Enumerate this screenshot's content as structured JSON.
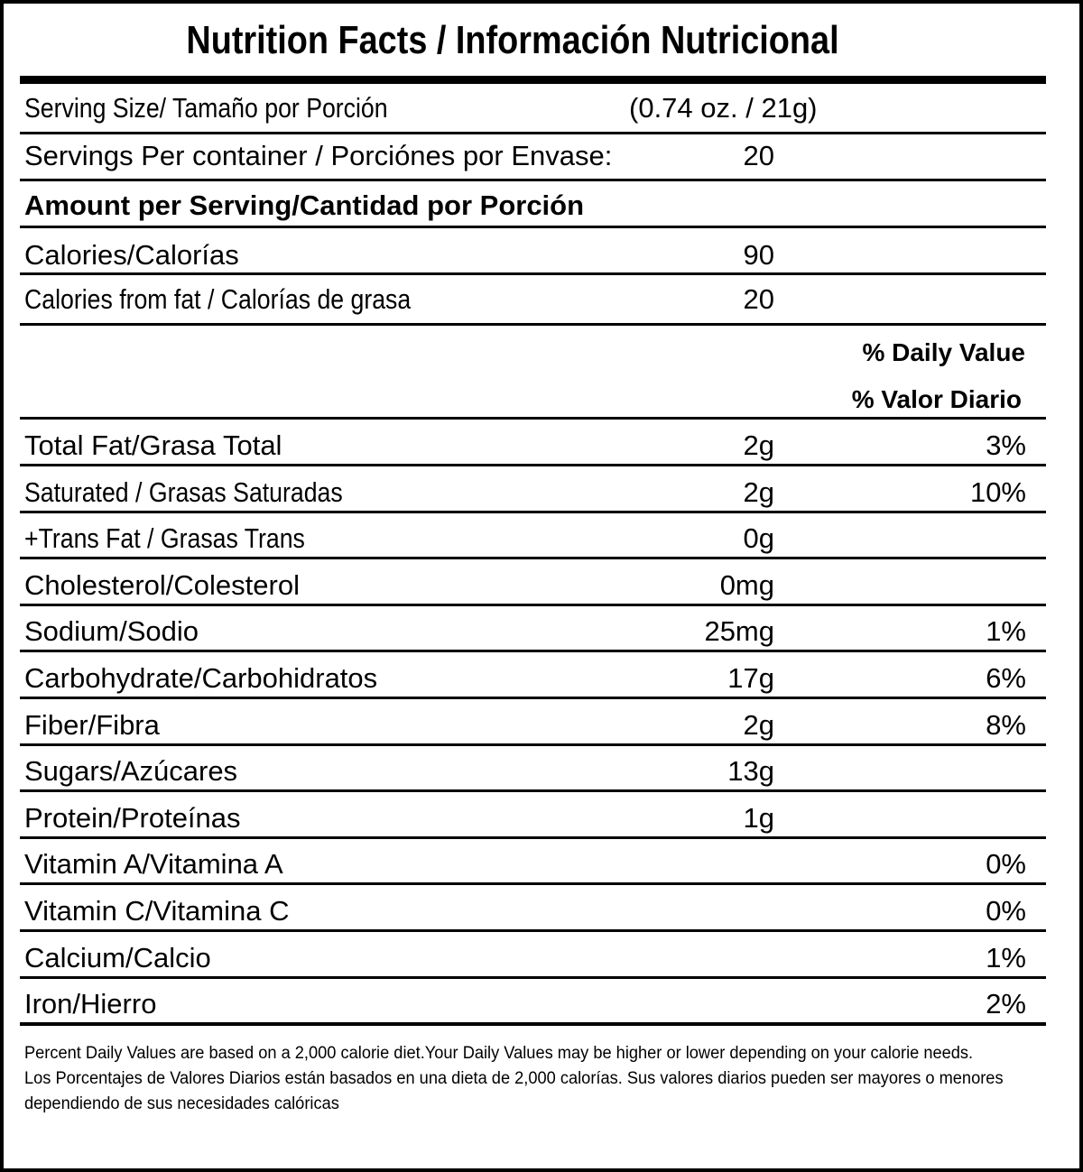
{
  "title": "Nutrition Facts / Información Nutricional",
  "serving_size": {
    "label": "Serving Size/ Tamaño por Porción",
    "value": "(0.74 oz. / 21g)"
  },
  "servings_per_container": {
    "label": "Servings Per container / Porciónes por Envase:",
    "value": "20"
  },
  "amount_header": "Amount per Serving/Cantidad por Porción",
  "calories": {
    "label": "Calories/Calorías",
    "value": "90"
  },
  "calories_fat": {
    "label": "Calories from fat / Calorías de grasa",
    "value": "20"
  },
  "dv_header": {
    "line1": "% Daily Value",
    "line2": "% Valor Diario"
  },
  "nutrients": [
    {
      "label": "Total Fat/Grasa Total",
      "amount": "2g",
      "dv": "3%"
    },
    {
      "label": "Saturated / Grasas Saturadas",
      "amount": "2g",
      "dv": "10%"
    },
    {
      "label": "+Trans Fat / Grasas Trans",
      "amount": "0g",
      "dv": ""
    },
    {
      "label": "Cholesterol/Colesterol",
      "amount": "0mg",
      "dv": ""
    },
    {
      "label": "Sodium/Sodio",
      "amount": "25mg",
      "dv": "1%"
    },
    {
      "label": "Carbohydrate/Carbohidratos",
      "amount": "17g",
      "dv": "6%"
    },
    {
      "label": "Fiber/Fibra",
      "amount": "2g",
      "dv": "8%"
    },
    {
      "label": "Sugars/Azúcares",
      "amount": "13g",
      "dv": ""
    },
    {
      "label": "Protein/Proteínas",
      "amount": "1g",
      "dv": ""
    },
    {
      "label": "Vitamin A/Vitamina A",
      "amount": "",
      "dv": "0%"
    },
    {
      "label": "Vitamin C/Vitamina C",
      "amount": "",
      "dv": "0%"
    },
    {
      "label": "Calcium/Calcio",
      "amount": "",
      "dv": "1%"
    },
    {
      "label": "Iron/Hierro",
      "amount": "",
      "dv": "2%"
    }
  ],
  "footer": {
    "english": "Percent Daily Values are based on a 2,000 calorie diet.Your Daily Values may be higher or lower depending on your calorie needs.",
    "spanish": "Los Porcentajes de Valores Diarios están basados en una dieta de 2,000 calorías. Sus valores diarios pueden ser mayores o menores dependiendo de sus necesidades calóricas"
  }
}
